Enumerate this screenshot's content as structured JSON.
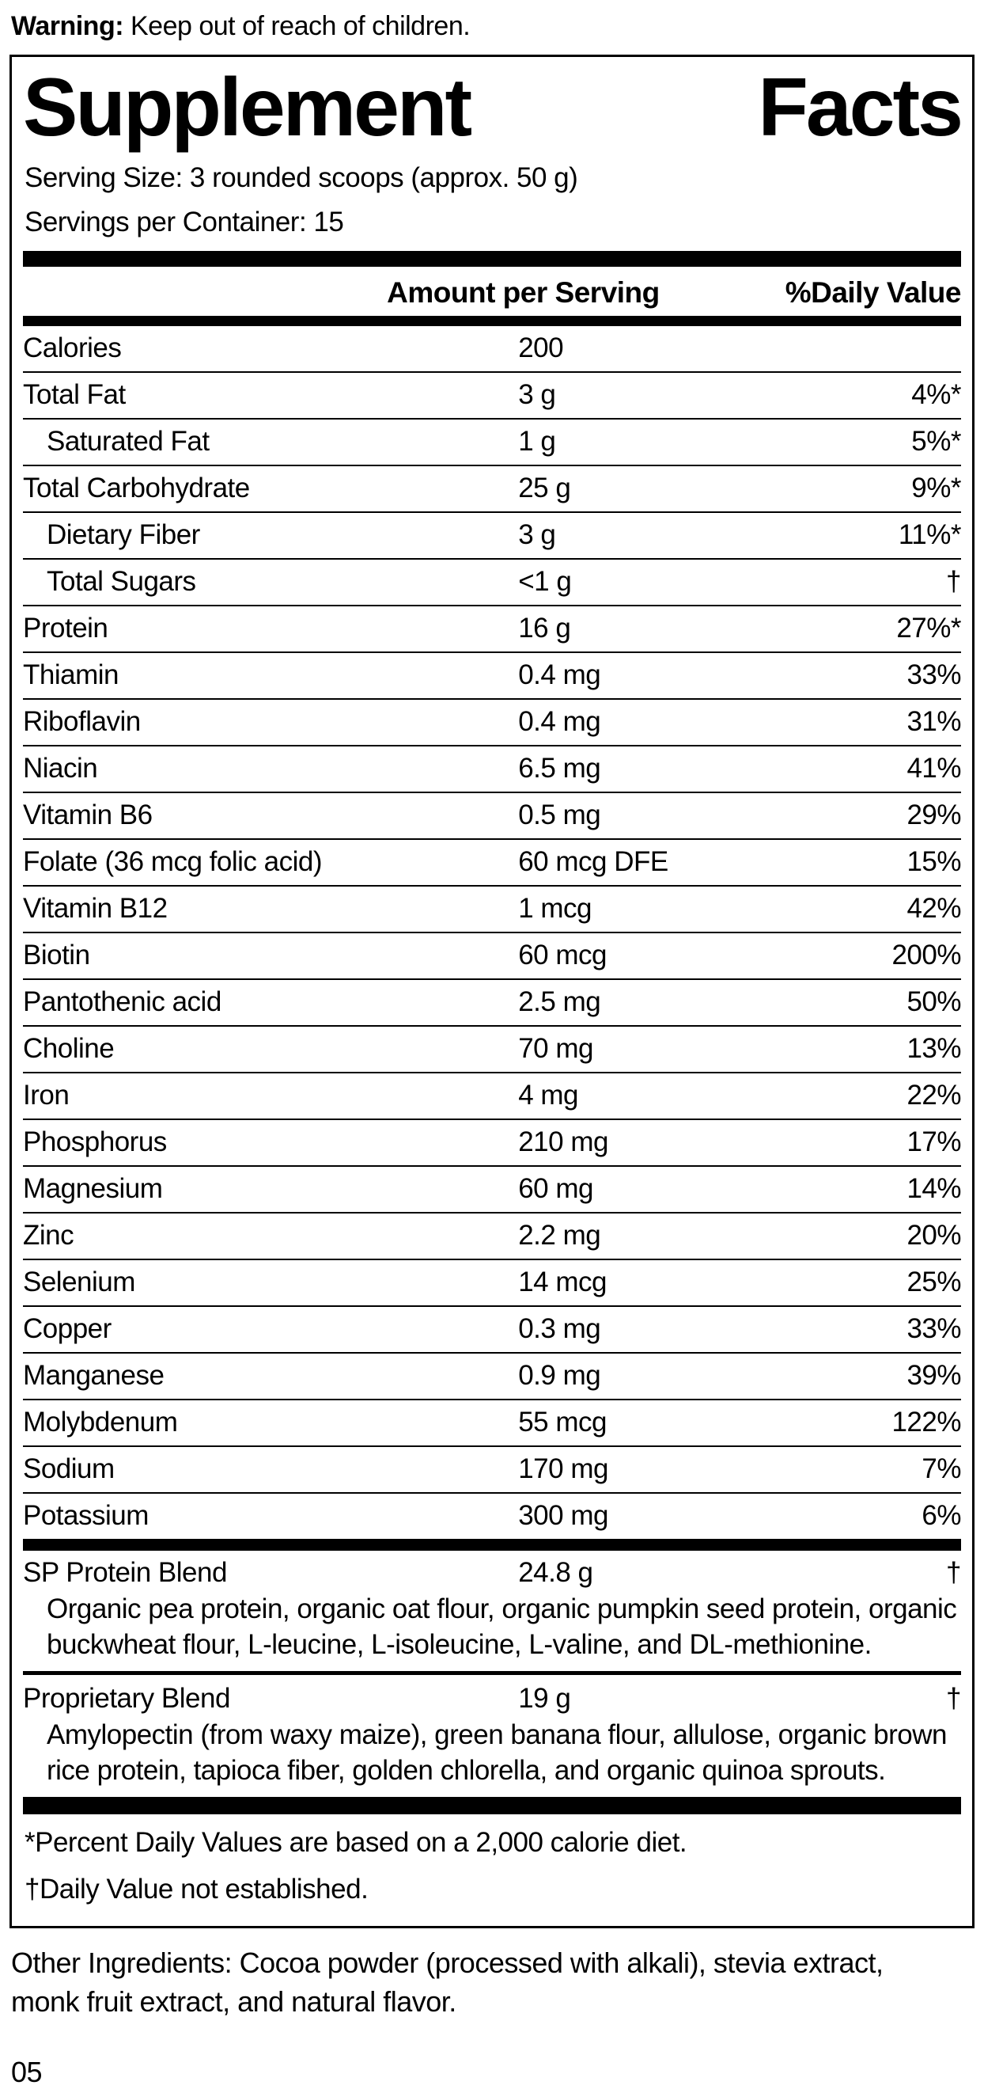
{
  "colors": {
    "text": "#000000",
    "background": "#ffffff",
    "bar": "#000000"
  },
  "warning": {
    "label": "Warning:",
    "text": "Keep out of reach of children."
  },
  "panel": {
    "title": "Supplement Facts",
    "serving_size": "Serving Size: 3 rounded scoops (approx. 50 g)",
    "servings_per_container": "Servings per Container: 15",
    "columns": {
      "amount": "Amount per Serving",
      "dv": "%Daily Value"
    },
    "rows": [
      {
        "name": "Calories",
        "amount": "200",
        "dv": "",
        "indent": false
      },
      {
        "name": "Total Fat",
        "amount": "3 g",
        "dv": "4%*",
        "indent": false
      },
      {
        "name": "Saturated Fat",
        "amount": "1 g",
        "dv": "5%*",
        "indent": true
      },
      {
        "name": "Total Carbohydrate",
        "amount": "25 g",
        "dv": "9%*",
        "indent": false
      },
      {
        "name": "Dietary Fiber",
        "amount": "3 g",
        "dv": "11%*",
        "indent": true
      },
      {
        "name": "Total Sugars",
        "amount": "<1 g",
        "dv": "†",
        "indent": true
      },
      {
        "name": "Protein",
        "amount": "16 g",
        "dv": "27%*",
        "indent": false
      },
      {
        "name": "Thiamin",
        "amount": "0.4 mg",
        "dv": "33%",
        "indent": false
      },
      {
        "name": "Riboflavin",
        "amount": "0.4 mg",
        "dv": "31%",
        "indent": false
      },
      {
        "name": "Niacin",
        "amount": "6.5 mg",
        "dv": "41%",
        "indent": false
      },
      {
        "name": "Vitamin B6",
        "amount": "0.5 mg",
        "dv": "29%",
        "indent": false
      },
      {
        "name": "Folate (36 mcg folic acid)",
        "amount": "60 mcg DFE",
        "dv": "15%",
        "indent": false
      },
      {
        "name": "Vitamin B12",
        "amount": "1 mcg",
        "dv": "42%",
        "indent": false
      },
      {
        "name": "Biotin",
        "amount": "60 mcg",
        "dv": "200%",
        "indent": false
      },
      {
        "name": "Pantothenic acid",
        "amount": "2.5 mg",
        "dv": "50%",
        "indent": false
      },
      {
        "name": "Choline",
        "amount": "70 mg",
        "dv": "13%",
        "indent": false
      },
      {
        "name": "Iron",
        "amount": "4 mg",
        "dv": "22%",
        "indent": false
      },
      {
        "name": "Phosphorus",
        "amount": "210 mg",
        "dv": "17%",
        "indent": false
      },
      {
        "name": "Magnesium",
        "amount": "60 mg",
        "dv": "14%",
        "indent": false
      },
      {
        "name": "Zinc",
        "amount": "2.2 mg",
        "dv": "20%",
        "indent": false
      },
      {
        "name": "Selenium",
        "amount": "14 mcg",
        "dv": "25%",
        "indent": false
      },
      {
        "name": "Copper",
        "amount": "0.3 mg",
        "dv": "33%",
        "indent": false
      },
      {
        "name": "Manganese",
        "amount": "0.9 mg",
        "dv": "39%",
        "indent": false
      },
      {
        "name": "Molybdenum",
        "amount": "55 mcg",
        "dv": "122%",
        "indent": false
      },
      {
        "name": "Sodium",
        "amount": "170 mg",
        "dv": "7%",
        "indent": false
      },
      {
        "name": "Potassium",
        "amount": "300 mg",
        "dv": "6%",
        "indent": false
      }
    ],
    "blends": [
      {
        "name": "SP Protein Blend",
        "amount": "24.8 g",
        "dv": "†",
        "description": "Organic pea protein, organic oat flour, organic pumpkin seed protein, organic buckwheat flour, L-leucine, L-isoleucine, L-valine, and DL-methionine."
      },
      {
        "name": "Proprietary Blend",
        "amount": "19 g",
        "dv": "†",
        "description": "Amylopectin (from waxy maize), green banana flour, allulose, organic brown rice protein, tapioca fiber, golden chlorella, and organic quinoa sprouts."
      }
    ],
    "footnotes": [
      "*Percent Daily Values are based on a 2,000 calorie diet.",
      "†Daily Value not established."
    ]
  },
  "other_ingredients": "Other Ingredients: Cocoa powder (processed with alkali), stevia extract, monk fruit extract, and natural flavor.",
  "footer_code": "05"
}
